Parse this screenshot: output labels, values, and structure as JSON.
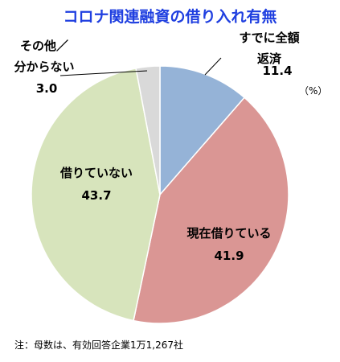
{
  "chart_data": {
    "type": "pie",
    "title": "コロナ関連融資の借り入れ有無",
    "unit_label": "（%）",
    "note": "注：母数は、有効回答企業1万1,267社",
    "categories": [
      "すでに全額返済",
      "現在借りている",
      "借りていない",
      "その他／\n分からない"
    ],
    "values": [
      11.4,
      41.9,
      43.7,
      3.0
    ],
    "value_labels": [
      "11.4",
      "41.9",
      "43.7",
      "3.0"
    ],
    "colors": [
      "#95b3d7",
      "#da9694",
      "#d7e4bc",
      "#d9d9d9"
    ]
  }
}
